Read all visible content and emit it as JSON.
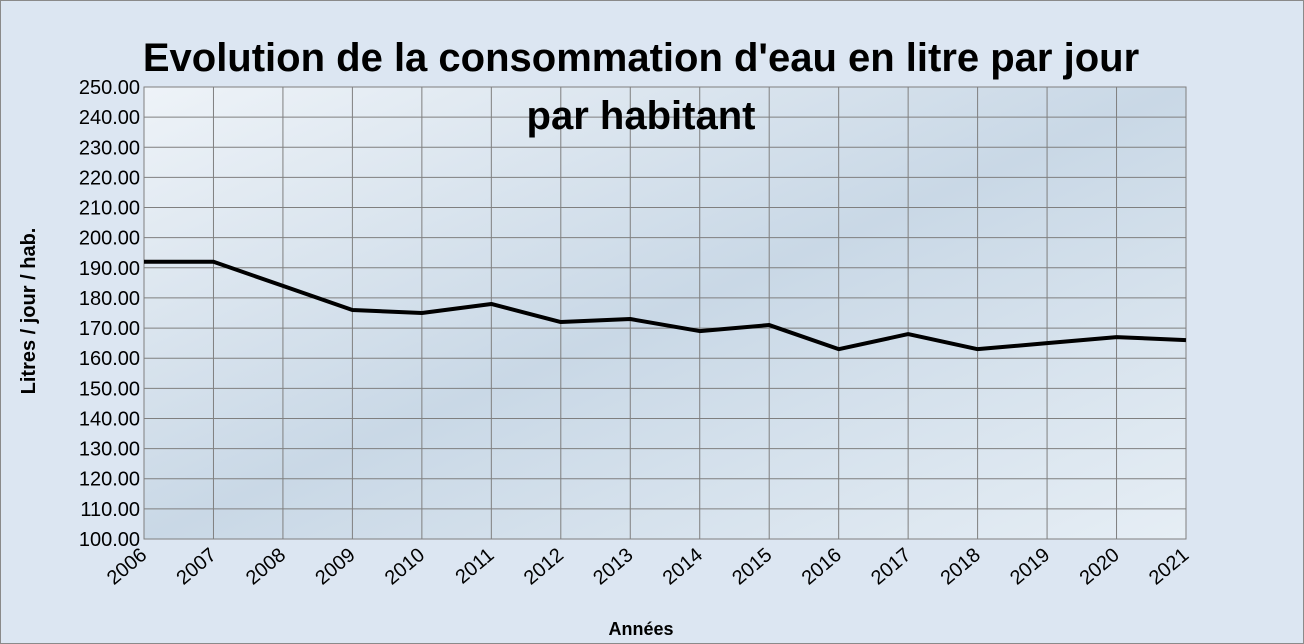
{
  "chart_data": {
    "type": "line",
    "title": "Evolution de la consommation d'eau en litre par jour par habitant",
    "x_label": "Années",
    "y_label": "Litres / jour / hab.",
    "categories": [
      "2006",
      "2007",
      "2008",
      "2009",
      "2010",
      "2011",
      "2012",
      "2013",
      "2014",
      "2015",
      "2016",
      "2017",
      "2018",
      "2019",
      "2020",
      "2021"
    ],
    "series": [
      {
        "name": "Litres / jour / hab.",
        "color": "#000000",
        "values": [
          192,
          192,
          184,
          176,
          175,
          178,
          172,
          173,
          169,
          171,
          163,
          168,
          163,
          165,
          167,
          166
        ]
      }
    ],
    "ylim": [
      100,
      250
    ],
    "yticks": [
      {
        "value": 100,
        "label": "100.00"
      },
      {
        "value": 110,
        "label": "110.00"
      },
      {
        "value": 120,
        "label": "120.00"
      },
      {
        "value": 130,
        "label": "130.00"
      },
      {
        "value": 140,
        "label": "140.00"
      },
      {
        "value": 150,
        "label": "150.00"
      },
      {
        "value": 160,
        "label": "160.00"
      },
      {
        "value": 170,
        "label": "170.00"
      },
      {
        "value": 180,
        "label": "180.00"
      },
      {
        "value": 190,
        "label": "190.00"
      },
      {
        "value": 200,
        "label": "200.00"
      },
      {
        "value": 210,
        "label": "210.00"
      },
      {
        "value": 220,
        "label": "220.00"
      },
      {
        "value": 230,
        "label": "230.00"
      },
      {
        "value": 240,
        "label": "240.00"
      },
      {
        "value": 250,
        "label": "250.00"
      }
    ],
    "grid": true
  }
}
